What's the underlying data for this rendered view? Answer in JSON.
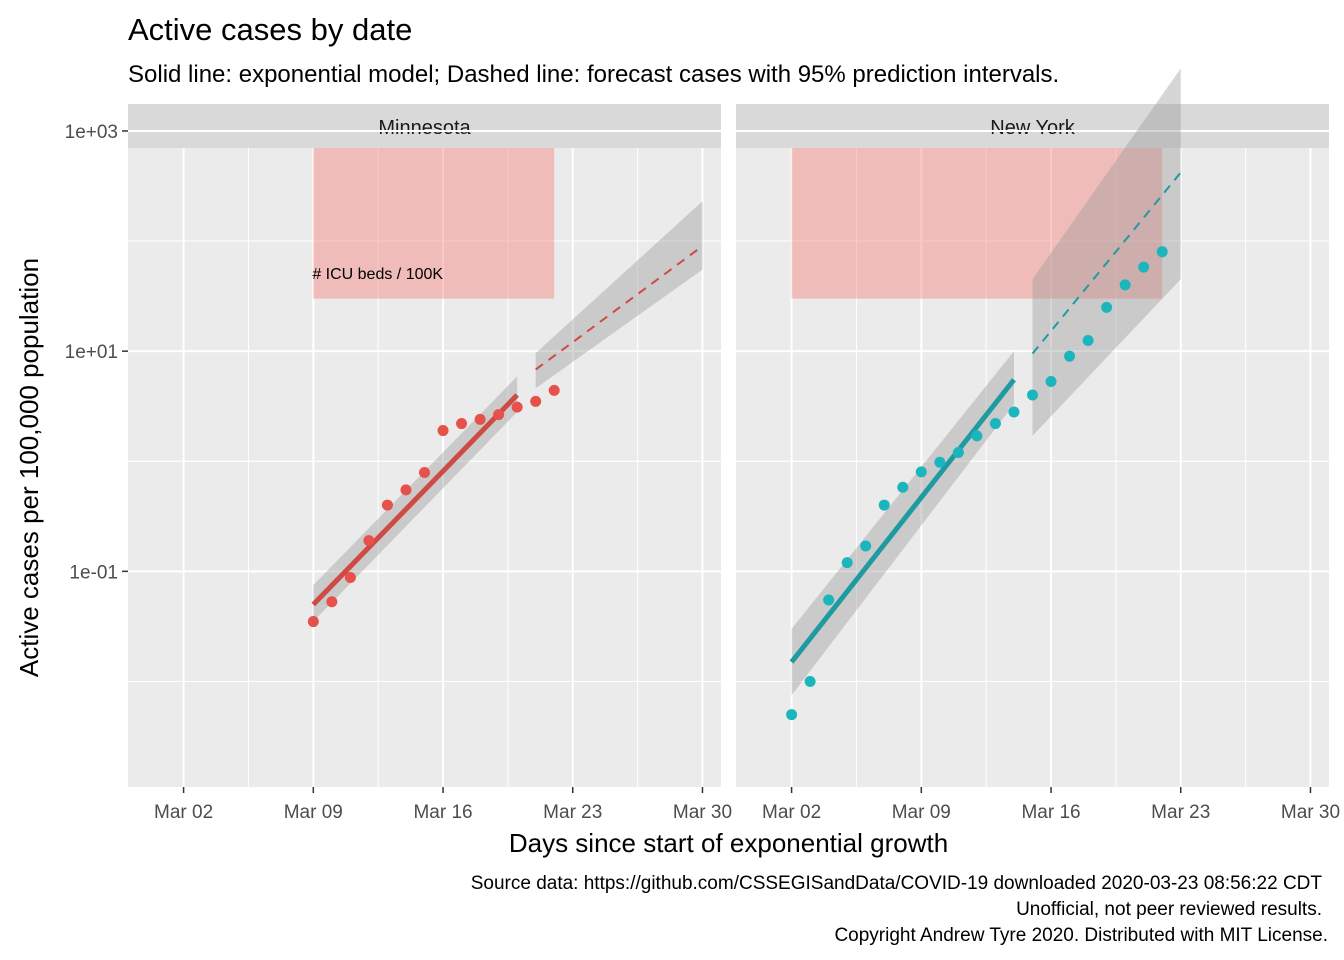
{
  "chart_data": {
    "type": "scatter",
    "title": "Active cases by date",
    "subtitle": "Solid line: exponential model; Dashed line: forecast cases with 95% prediction intervals.",
    "xlabel": "Days since start of exponential growth",
    "ylabel": "Active cases per 100,000 population",
    "y_scale": "log10",
    "ylim": [
      0.0011,
      700
    ],
    "y_ticks": [
      0.1,
      10,
      1000
    ],
    "y_tick_labels": [
      "1e-01",
      "1e+01",
      "1e+03"
    ],
    "grid": true,
    "icu_label": "# ICU beds / 100K",
    "caption": [
      "Source data: https://github.com/CSSEGISandData/COVID-19 downloaded  2020-03-23 08:56:22 CDT",
      "Unofficial, not peer reviewed results.",
      "Copyright Andrew Tyre 2020. Distributed with MIT License."
    ],
    "panels": [
      {
        "facet": "Minnesota",
        "color": "#E7514B",
        "fit_color": "#CE4A44",
        "x_range": [
          "2020-02-28",
          "2020-03-31"
        ],
        "x_ticks": [
          "2020-03-02",
          "2020-03-09",
          "2020-03-16",
          "2020-03-23",
          "2020-03-30"
        ],
        "x_tick_labels": [
          "Mar 02",
          "Mar 09",
          "Mar 16",
          "Mar 23",
          "Mar 30"
        ],
        "icu_band": {
          "x_start": "2020-03-09",
          "x_end": "2020-03-22",
          "y_low": 30,
          "y_high": 700
        },
        "points": [
          {
            "x": "2020-03-09",
            "y": 0.035
          },
          {
            "x": "2020-03-10",
            "y": 0.053
          },
          {
            "x": "2020-03-11",
            "y": 0.088
          },
          {
            "x": "2020-03-12",
            "y": 0.19
          },
          {
            "x": "2020-03-13",
            "y": 0.4
          },
          {
            "x": "2020-03-14",
            "y": 0.55
          },
          {
            "x": "2020-03-15",
            "y": 0.79
          },
          {
            "x": "2020-03-16",
            "y": 1.9
          },
          {
            "x": "2020-03-17",
            "y": 2.2
          },
          {
            "x": "2020-03-18",
            "y": 2.4
          },
          {
            "x": "2020-03-19",
            "y": 2.65
          },
          {
            "x": "2020-03-20",
            "y": 3.1
          },
          {
            "x": "2020-03-21",
            "y": 3.5
          },
          {
            "x": "2020-03-22",
            "y": 4.4
          }
        ],
        "fit": {
          "x": [
            "2020-03-09",
            "2020-03-20"
          ],
          "y": [
            0.05,
            4.0
          ]
        },
        "fit_ci": {
          "x": [
            "2020-03-09",
            "2020-03-20"
          ],
          "lower": [
            0.035,
            2.8
          ],
          "upper": [
            0.075,
            5.9
          ]
        },
        "forecast": {
          "x": [
            "2020-03-21",
            "2020-03-30"
          ],
          "y": [
            6.8,
            90
          ]
        },
        "forecast_pi": {
          "x": [
            "2020-03-21",
            "2020-03-30"
          ],
          "lower": [
            4.6,
            55
          ],
          "upper": [
            9.6,
            230
          ]
        }
      },
      {
        "facet": "New York",
        "color": "#1BB6BD",
        "fit_color": "#1E9BA1",
        "x_range": [
          "2020-02-28",
          "2020-03-31"
        ],
        "x_ticks": [
          "2020-03-02",
          "2020-03-09",
          "2020-03-16",
          "2020-03-23",
          "2020-03-30"
        ],
        "x_tick_labels": [
          "Mar 02",
          "Mar 09",
          "Mar 16",
          "Mar 23",
          "Mar 30"
        ],
        "icu_band": {
          "x_start": "2020-03-02",
          "x_end": "2020-03-22",
          "y_low": 30,
          "y_high": 700
        },
        "points": [
          {
            "x": "2020-03-02",
            "y": 0.005
          },
          {
            "x": "2020-03-03",
            "y": 0.01
          },
          {
            "x": "2020-03-04",
            "y": 0.055
          },
          {
            "x": "2020-03-05",
            "y": 0.12
          },
          {
            "x": "2020-03-06",
            "y": 0.17
          },
          {
            "x": "2020-03-07",
            "y": 0.4
          },
          {
            "x": "2020-03-08",
            "y": 0.58
          },
          {
            "x": "2020-03-09",
            "y": 0.8
          },
          {
            "x": "2020-03-10",
            "y": 0.98
          },
          {
            "x": "2020-03-11",
            "y": 1.2
          },
          {
            "x": "2020-03-12",
            "y": 1.7
          },
          {
            "x": "2020-03-13",
            "y": 2.2
          },
          {
            "x": "2020-03-14",
            "y": 2.8
          },
          {
            "x": "2020-03-15",
            "y": 4.0
          },
          {
            "x": "2020-03-16",
            "y": 5.3
          },
          {
            "x": "2020-03-17",
            "y": 9.0
          },
          {
            "x": "2020-03-18",
            "y": 12.5
          },
          {
            "x": "2020-03-19",
            "y": 25
          },
          {
            "x": "2020-03-20",
            "y": 40
          },
          {
            "x": "2020-03-21",
            "y": 58
          },
          {
            "x": "2020-03-22",
            "y": 80
          }
        ],
        "fit": {
          "x": [
            "2020-03-02",
            "2020-03-14"
          ],
          "y": [
            0.015,
            5.5
          ]
        },
        "fit_ci": {
          "x": [
            "2020-03-02",
            "2020-03-14"
          ],
          "lower": [
            0.0075,
            3.3
          ],
          "upper": [
            0.03,
            10
          ]
        },
        "forecast": {
          "x": [
            "2020-03-15",
            "2020-03-23"
          ],
          "y": [
            9.5,
            420
          ]
        },
        "forecast_pi": {
          "x": [
            "2020-03-15",
            "2020-03-23"
          ],
          "lower": [
            1.7,
            45
          ],
          "upper": [
            45,
            3700
          ]
        }
      }
    ]
  }
}
